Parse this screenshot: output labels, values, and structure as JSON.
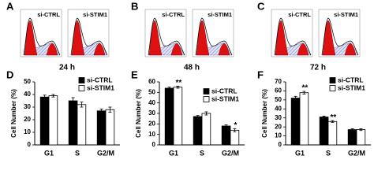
{
  "histogram_panels": [
    {
      "label": "A",
      "time": "24 h",
      "plots": [
        "si-CTRL",
        "si-STIM1"
      ]
    },
    {
      "label": "B",
      "time": "48 h",
      "plots": [
        "si-CTRL",
        "si-STIM1"
      ]
    },
    {
      "label": "C",
      "time": "72 h",
      "plots": [
        "si-CTRL",
        "si-STIM1"
      ]
    }
  ],
  "chart_data": [
    {
      "type": "bar",
      "panel": "D",
      "ylabel": "Cell Number (%)",
      "categories": [
        "G1",
        "S",
        "G2/M"
      ],
      "series": [
        {
          "name": "si-CTRL",
          "color": "#000000",
          "values": [
            38,
            35,
            27
          ],
          "errors": [
            1.5,
            2.5,
            1.5
          ]
        },
        {
          "name": "si-STIM1",
          "color": "#ffffff",
          "values": [
            39,
            32,
            28
          ],
          "errors": [
            1,
            2,
            2
          ]
        }
      ],
      "ylim": [
        0,
        50
      ],
      "yticks": [
        0,
        10,
        20,
        30,
        40,
        50
      ],
      "legend": "upper right"
    },
    {
      "type": "bar",
      "panel": "E",
      "ylabel": "Cell Number (%)",
      "categories": [
        "G1",
        "S",
        "G2/M"
      ],
      "series": [
        {
          "name": "si-CTRL",
          "color": "#000000",
          "values": [
            54,
            27,
            18
          ],
          "errors": [
            1,
            1,
            1
          ]
        },
        {
          "name": "si-STIM1",
          "color": "#ffffff",
          "values": [
            55,
            30,
            14
          ],
          "errors": [
            1,
            1.5,
            1.5
          ],
          "significance": [
            "**",
            null,
            "*"
          ]
        }
      ],
      "ylim": [
        0,
        60
      ],
      "yticks": [
        0,
        10,
        20,
        30,
        40,
        50,
        60
      ],
      "legend": "center right"
    },
    {
      "type": "bar",
      "panel": "F",
      "ylabel": "Cell Number (%)",
      "categories": [
        "G1",
        "S",
        "G2/M"
      ],
      "series": [
        {
          "name": "si-CTRL",
          "color": "#000000",
          "values": [
            52,
            31,
            17
          ],
          "errors": [
            2,
            1,
            1
          ]
        },
        {
          "name": "si-STIM1",
          "color": "#ffffff",
          "values": [
            58,
            26,
            17
          ],
          "errors": [
            1.5,
            1,
            1
          ],
          "significance": [
            "**",
            "**",
            null
          ]
        }
      ],
      "ylim": [
        0,
        70
      ],
      "yticks": [
        0,
        10,
        20,
        30,
        40,
        50,
        60,
        70
      ],
      "legend": "upper right"
    }
  ]
}
